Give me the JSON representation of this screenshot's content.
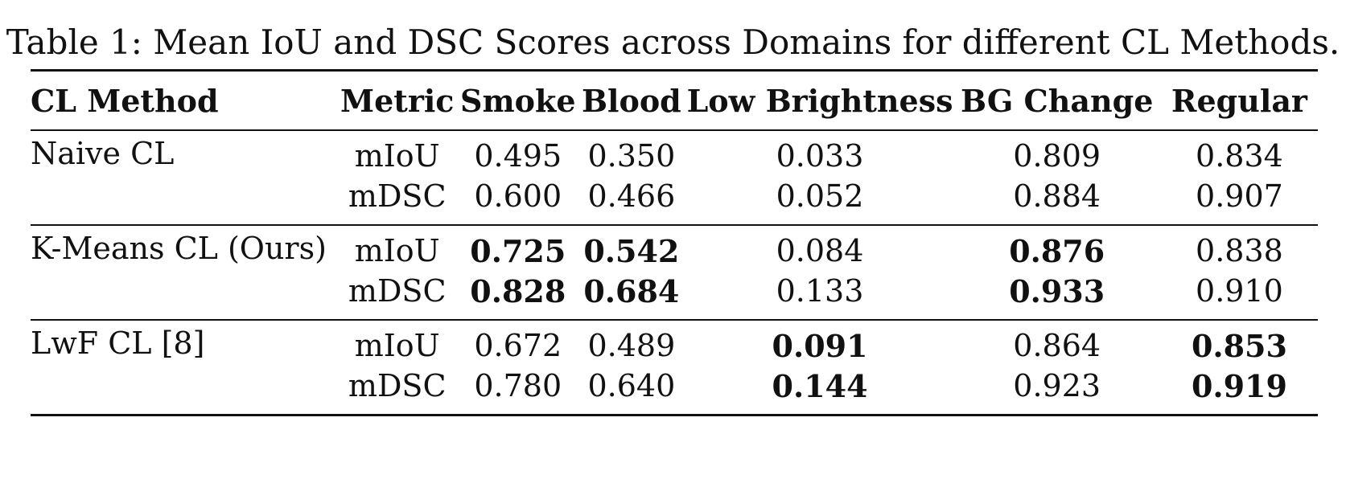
{
  "caption": "Table 1: Mean IoU and DSC Scores across Domains for different CL Methods.",
  "headers": {
    "method": "CL Method",
    "metric": "Metric",
    "smoke": "Smoke",
    "blood": "Blood",
    "low_brightness": "Low Brightness",
    "bg_change": "BG Change",
    "regular": "Regular"
  },
  "groups": [
    {
      "method": "Naive CL",
      "rows": [
        {
          "metric": "mIoU",
          "smoke": "0.495",
          "blood": "0.350",
          "low_brightness": "0.033",
          "bg_change": "0.809",
          "regular": "0.834"
        },
        {
          "metric": "mDSC",
          "smoke": "0.600",
          "blood": "0.466",
          "low_brightness": "0.052",
          "bg_change": "0.884",
          "regular": "0.907"
        }
      ]
    },
    {
      "method": "K-Means CL (Ours)",
      "rows": [
        {
          "metric": "mIoU",
          "smoke": "0.725",
          "blood": "0.542",
          "low_brightness": "0.084",
          "bg_change": "0.876",
          "regular": "0.838"
        },
        {
          "metric": "mDSC",
          "smoke": "0.828",
          "blood": "0.684",
          "low_brightness": "0.133",
          "bg_change": "0.933",
          "regular": "0.910"
        }
      ]
    },
    {
      "method": "LwF CL [8]",
      "rows": [
        {
          "metric": "mIoU",
          "smoke": "0.672",
          "blood": "0.489",
          "low_brightness": "0.091",
          "bg_change": "0.864",
          "regular": "0.853"
        },
        {
          "metric": "mDSC",
          "smoke": "0.780",
          "blood": "0.640",
          "low_brightness": "0.144",
          "bg_change": "0.923",
          "regular": "0.919"
        }
      ]
    }
  ],
  "bold_cells": [
    "K-Means CL (Ours)/mIoU/Smoke",
    "K-Means CL (Ours)/mIoU/Blood",
    "K-Means CL (Ours)/mIoU/BG Change",
    "K-Means CL (Ours)/mDSC/Smoke",
    "K-Means CL (Ours)/mDSC/Blood",
    "K-Means CL (Ours)/mDSC/BG Change",
    "LwF CL [8]/mIoU/Low Brightness",
    "LwF CL [8]/mIoU/Regular",
    "LwF CL [8]/mDSC/Low Brightness",
    "LwF CL [8]/mDSC/Regular"
  ]
}
